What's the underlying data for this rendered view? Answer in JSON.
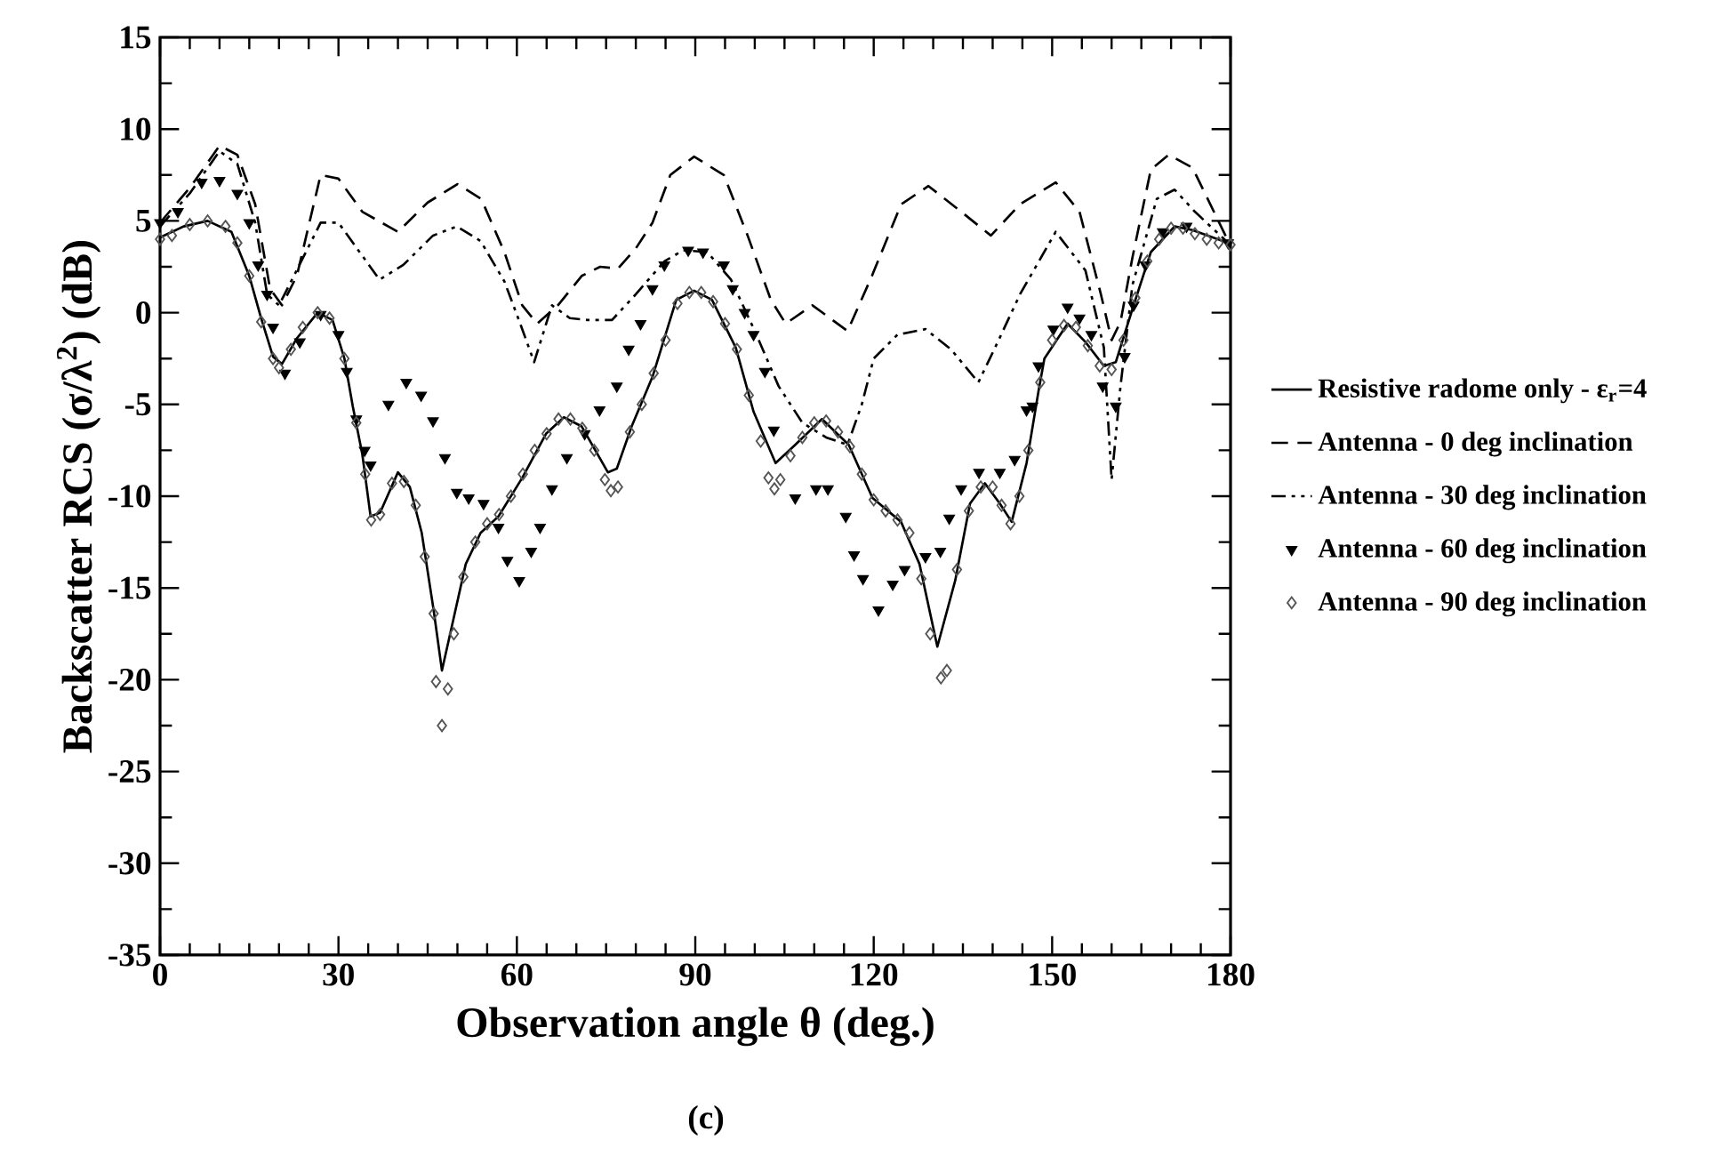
{
  "chart_data": {
    "type": "line",
    "xlabel": "Observation angle θ (deg.)",
    "ylabel": "Backscatter RCS (σ/λ$^{2}$) (dB)",
    "xlim": [
      0,
      180
    ],
    "xticks": [
      0,
      30,
      60,
      90,
      120,
      150,
      180
    ],
    "ylim": [
      -35,
      15
    ],
    "yticks": [
      -35,
      -30,
      -25,
      -20,
      -15,
      -10,
      -5,
      0,
      5,
      10,
      15
    ],
    "legend": "right",
    "grid": false,
    "annotations": [
      "(c)"
    ],
    "series": [
      {
        "name": "Resistive radome only - ε$_{r}$=4",
        "color": "#000000",
        "line_style": "solid",
        "marker": "none",
        "x": [
          0,
          4,
          8,
          12,
          15,
          17,
          19,
          20.5,
          23,
          26.5,
          29,
          31,
          32.4,
          34,
          35.4,
          37,
          40,
          42,
          44,
          46,
          47.4,
          49.4,
          51.4,
          53.9,
          56.9,
          60.9,
          64.9,
          67.9,
          70.9,
          75.3,
          76.8,
          79.3,
          82.8,
          86.8,
          89.8,
          92.8,
          96.8,
          99.8,
          103.5,
          106.8,
          111.3,
          115.8,
          119.8,
          124.6,
          127.7,
          130.7,
          133.7,
          136.2,
          138.7,
          141.2,
          143.2,
          145.7,
          147.7,
          148.7,
          152.6,
          155.6,
          158.7,
          160.7,
          163.7,
          166.6,
          170.6,
          173.6,
          179.6
        ],
        "values": [
          4.1,
          4.7,
          5.0,
          4.4,
          2.0,
          -0.3,
          -2.4,
          -2.8,
          -1.4,
          0.0,
          -0.4,
          -2.5,
          -5.1,
          -7.7,
          -11.1,
          -10.9,
          -8.7,
          -9.5,
          -12.0,
          -16.2,
          -19.5,
          -16.6,
          -13.7,
          -12.0,
          -11.1,
          -9.0,
          -6.6,
          -5.7,
          -6.2,
          -8.7,
          -8.5,
          -6.2,
          -3.5,
          0.7,
          1.2,
          0.7,
          -1.9,
          -5.4,
          -8.2,
          -7.2,
          -5.8,
          -7.2,
          -10.1,
          -11.4,
          -13.7,
          -18.2,
          -14.6,
          -10.4,
          -9.3,
          -10.4,
          -11.4,
          -8.2,
          -4.3,
          -2.5,
          -0.6,
          -1.6,
          -2.9,
          -2.7,
          0.4,
          3.3,
          4.7,
          4.5,
          3.8
        ]
      },
      {
        "name": "Antenna - 0 deg inclination",
        "color": "#000000",
        "line_style": "dashed",
        "marker": "none",
        "x": [
          0,
          5,
          10,
          13,
          16,
          18.5,
          20.5,
          23,
          27,
          30,
          34,
          40,
          45,
          50,
          54,
          57.9,
          60.9,
          63.4,
          66.9,
          70.9,
          74,
          77,
          80,
          82.8,
          85.8,
          89.8,
          94.8,
          98.8,
          102.7,
          105.2,
          109.7,
          115.6,
          119.7,
          124.6,
          129.2,
          134.7,
          139.7,
          144.6,
          150.6,
          154.6,
          158.2,
          160,
          161.5,
          163.5,
          166.6,
          169.6,
          173.6,
          179.6
        ],
        "values": [
          4.9,
          6.8,
          9.1,
          8.6,
          5.9,
          1.3,
          0.4,
          2.0,
          7.5,
          7.3,
          5.5,
          4.4,
          6.0,
          7.0,
          6.2,
          3.3,
          0.4,
          -0.6,
          0.4,
          2.0,
          2.5,
          2.4,
          3.5,
          4.9,
          7.5,
          8.5,
          7.5,
          4.2,
          0.7,
          -0.6,
          0.4,
          -1.0,
          2.0,
          5.9,
          6.9,
          5.5,
          4.2,
          5.9,
          7.1,
          5.5,
          1.0,
          -1.5,
          -0.5,
          3.0,
          7.8,
          8.6,
          7.9,
          3.9
        ]
      },
      {
        "name": "Antenna - 30 deg inclination",
        "color": "#000000",
        "line_style": "dashdotted",
        "marker": "none",
        "x": [
          0,
          5,
          10,
          13,
          16,
          18,
          20,
          22.5,
          27,
          30,
          34,
          36.9,
          40.9,
          45.9,
          49.9,
          53.9,
          57.9,
          60.9,
          62.9,
          65.9,
          68.9,
          71.9,
          76,
          80,
          84.8,
          88,
          92,
          96,
          100,
          104,
          108,
          112,
          115.6,
          118,
          120,
          124,
          128.7,
          133,
          137.6,
          141,
          144.6,
          150.6,
          155.6,
          158.7,
          160,
          161.5,
          163.5,
          167.6,
          170.6,
          174,
          179.6
        ],
        "values": [
          4.7,
          6.5,
          8.8,
          8.1,
          4.9,
          1.0,
          0.4,
          2.0,
          4.9,
          4.9,
          3.1,
          1.8,
          2.6,
          4.2,
          4.7,
          3.9,
          1.7,
          -0.9,
          -2.7,
          0.4,
          -0.3,
          -0.4,
          -0.4,
          1.0,
          2.8,
          3.4,
          3.3,
          1.8,
          -1.0,
          -4.0,
          -6.0,
          -6.8,
          -7.2,
          -5.0,
          -2.5,
          -1.2,
          -0.9,
          -2.0,
          -3.8,
          -1.5,
          1.0,
          4.4,
          2.3,
          -1.9,
          -9.1,
          -4.0,
          1.5,
          6.2,
          6.7,
          5.5,
          3.8
        ]
      },
      {
        "name": "Antenna - 60 deg inclination",
        "type": "scatter",
        "color": "#000000",
        "marker": "triangle",
        "x": [
          0,
          3,
          7,
          10,
          13,
          15,
          16.5,
          18,
          19,
          21,
          23.5,
          27,
          30,
          31.4,
          33,
          34.4,
          35.4,
          38.4,
          41.4,
          43.9,
          45.9,
          47.9,
          49.9,
          51.9,
          54.4,
          56.9,
          58.4,
          60.4,
          62.4,
          63.9,
          65.9,
          68.4,
          71.4,
          73.9,
          76.8,
          78.8,
          80.8,
          82.8,
          84.8,
          88.8,
          91.3,
          94.8,
          96.3,
          98.3,
          99.8,
          101.7,
          103.2,
          106.8,
          110.3,
          112.3,
          115.3,
          116.7,
          118.2,
          120.8,
          123.2,
          125.2,
          128.7,
          131.2,
          132.7,
          134.7,
          137.7,
          141.2,
          143.7,
          145.7,
          146.7,
          147.7,
          150.2,
          152.6,
          154.6,
          156.6,
          158.5,
          160.7,
          162.2,
          163.7,
          165.7,
          168.6,
          172.6,
          179.6
        ],
        "values": [
          4.9,
          5.5,
          7.1,
          7.2,
          6.5,
          4.9,
          2.6,
          1.0,
          -0.8,
          -3.3,
          -1.6,
          -0.1,
          -1.2,
          -3.2,
          -5.8,
          -7.5,
          -8.3,
          -5.0,
          -3.8,
          -4.5,
          -5.9,
          -7.9,
          -9.8,
          -10.1,
          -10.4,
          -11.7,
          -13.5,
          -14.6,
          -13.0,
          -11.7,
          -9.6,
          -7.9,
          -6.6,
          -5.3,
          -4.0,
          -2.0,
          -0.6,
          1.3,
          2.6,
          3.4,
          3.3,
          2.6,
          1.3,
          0.0,
          -1.2,
          -3.2,
          -6.4,
          -10.1,
          -9.6,
          -9.6,
          -11.1,
          -13.2,
          -14.5,
          -16.2,
          -14.8,
          -14.0,
          -13.3,
          -13.0,
          -11.2,
          -9.6,
          -8.7,
          -8.7,
          -8.0,
          -5.3,
          -5.1,
          -2.9,
          -0.9,
          0.3,
          -0.3,
          -1.2,
          -4.0,
          -5.1,
          -2.4,
          0.4,
          2.6,
          4.4,
          4.7,
          3.8
        ]
      },
      {
        "name": "Antenna - 90 deg inclination",
        "type": "scatter",
        "color": "#555555",
        "marker": "diamond",
        "x": [
          0,
          2,
          5,
          8,
          11,
          13,
          15,
          17,
          19,
          20,
          22,
          24,
          26.5,
          28.5,
          31,
          33,
          34.5,
          35.5,
          37,
          39,
          41,
          43,
          44.5,
          46,
          46.4,
          47.4,
          48.4,
          49.4,
          51,
          53,
          55,
          57,
          59,
          61,
          63,
          65,
          67,
          69,
          71,
          73,
          74.8,
          75.8,
          77,
          79,
          81,
          83,
          85,
          87,
          89,
          91,
          93,
          95,
          97,
          99,
          101,
          102.3,
          103.3,
          104.3,
          106,
          108,
          110,
          112,
          114,
          116,
          118,
          120,
          122,
          124,
          126,
          128,
          129.5,
          131.3,
          132.3,
          134,
          136,
          138,
          140,
          141.5,
          143,
          144.5,
          146,
          148,
          150,
          152,
          154,
          156,
          158,
          160,
          162,
          164,
          166,
          168,
          170,
          172,
          174,
          176,
          178,
          180
        ],
        "values": [
          4.0,
          4.2,
          4.8,
          5.0,
          4.7,
          3.8,
          2.0,
          -0.5,
          -2.5,
          -3.0,
          -2.0,
          -0.8,
          0.0,
          -0.3,
          -2.5,
          -6.0,
          -8.8,
          -11.3,
          -11.0,
          -9.3,
          -9.2,
          -10.5,
          -13.3,
          -16.4,
          -20.1,
          -22.5,
          -20.5,
          -17.5,
          -14.4,
          -12.5,
          -11.5,
          -11.0,
          -10.0,
          -8.8,
          -7.5,
          -6.6,
          -5.8,
          -5.8,
          -6.3,
          -7.5,
          -9.1,
          -9.7,
          -9.5,
          -6.5,
          -5.0,
          -3.3,
          -1.5,
          0.5,
          1.1,
          1.1,
          0.6,
          -0.6,
          -2.0,
          -4.5,
          -7.0,
          -9.0,
          -9.6,
          -9.1,
          -7.8,
          -6.8,
          -6.0,
          -5.9,
          -6.5,
          -7.3,
          -8.8,
          -10.2,
          -10.8,
          -11.3,
          -12.0,
          -14.5,
          -17.5,
          -19.9,
          -19.5,
          -14.0,
          -10.8,
          -9.5,
          -9.5,
          -10.5,
          -11.5,
          -10.0,
          -7.5,
          -3.8,
          -1.5,
          -0.7,
          -0.8,
          -1.8,
          -2.9,
          -3.1,
          -1.5,
          0.8,
          2.8,
          4.0,
          4.6,
          4.6,
          4.3,
          4.0,
          3.8,
          3.7
        ]
      }
    ]
  }
}
